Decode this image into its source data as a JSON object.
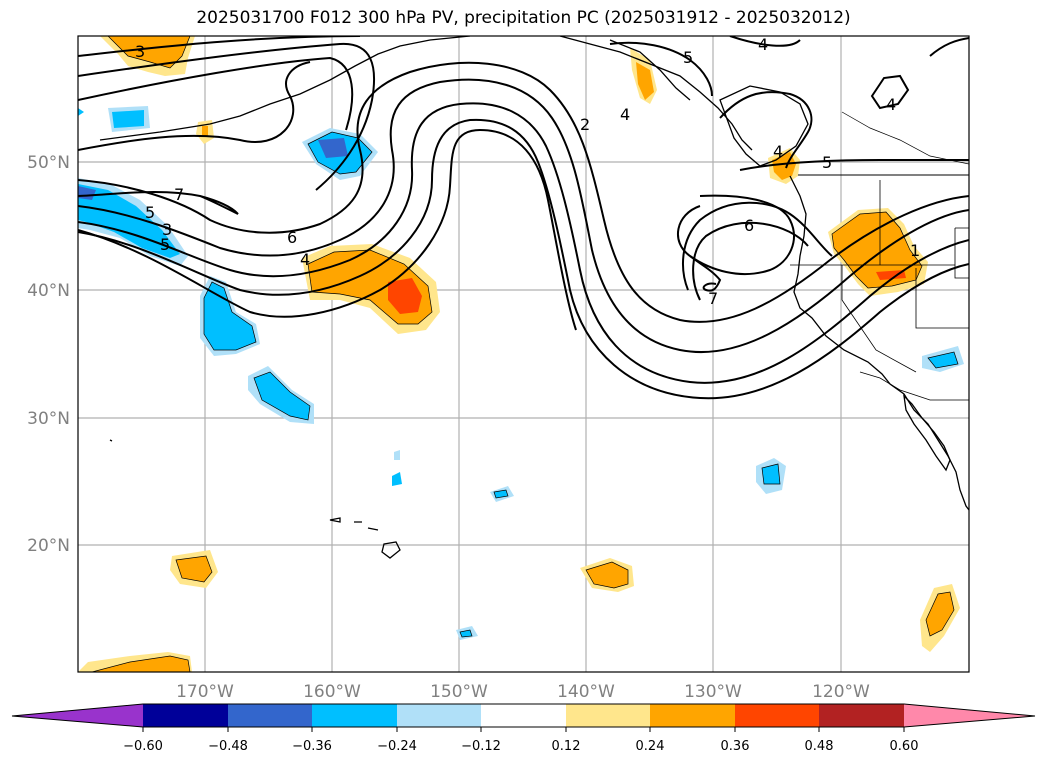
{
  "title": "2025031700 F012 300 hPa PV, precipitation PC (2025031912 - 2025032012)",
  "lat_labels": [
    "50°N",
    "40°N",
    "30°N",
    "20°N"
  ],
  "lon_labels": [
    "170°W",
    "160°W",
    "150°W",
    "140°W",
    "130°W",
    "120°W"
  ],
  "contour_labels": [
    "3",
    "5",
    "4",
    "4",
    "2",
    "4",
    "5",
    "4",
    "5",
    "7",
    "5",
    "3",
    "6",
    "4",
    "6",
    "1",
    "7"
  ],
  "colorbar": {
    "colors": [
      "#9933cc",
      "#000099",
      "#3366cc",
      "#00bfff",
      "#b0e0f8",
      "#ffffff",
      "#ffe68c",
      "#ffa500",
      "#ff4500",
      "#b22222",
      "#ff88aa"
    ],
    "tick_labels": [
      "−0.60",
      "−0.48",
      "−0.36",
      "−0.24",
      "−0.12",
      "0.12",
      "0.24",
      "0.36",
      "0.48",
      "0.60"
    ]
  }
}
